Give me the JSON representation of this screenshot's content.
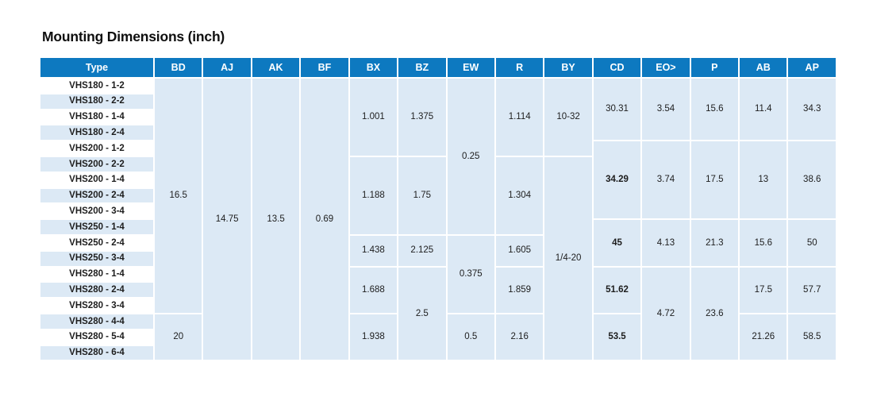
{
  "page": {
    "title": "Mounting Dimensions (inch)"
  },
  "colors": {
    "header_bg": "#0d79c0",
    "header_text": "#ffffff",
    "cell_bg": "#dce9f5",
    "row_base": "#ffffff",
    "body_text": "#1d1d1d"
  },
  "table": {
    "columns": [
      "Type",
      "BD",
      "AJ",
      "AK",
      "BF",
      "BX",
      "BZ",
      "EW",
      "R",
      "BY",
      "CD",
      "EO>",
      "P",
      "AB",
      "AP"
    ],
    "data_column_keys": [
      "BD",
      "AJ",
      "AK",
      "BF",
      "BX",
      "BZ",
      "EW",
      "R",
      "BY",
      "CD",
      "EO>",
      "P",
      "AB",
      "AP"
    ],
    "rows": [
      "VHS180 - 1-2",
      "VHS180 - 2-2",
      "VHS180 - 1-4",
      "VHS180 - 2-4",
      "VHS200 - 1-2",
      "VHS200 - 2-2",
      "VHS200 - 1-4",
      "VHS200 - 2-4",
      "VHS200 - 3-4",
      "VHS250 - 1-4",
      "VHS250 - 2-4",
      "VHS250 - 3-4",
      "VHS280 - 1-4",
      "VHS280 - 2-4",
      "VHS280 - 3-4",
      "VHS280 - 4-4",
      "VHS280 - 5-4",
      "VHS280 - 6-4"
    ],
    "merged": {
      "BD": [
        {
          "v": "16.5",
          "from": 1,
          "to": 15
        },
        {
          "v": "20",
          "from": 16,
          "to": 18
        }
      ],
      "AJ": [
        {
          "v": "14.75",
          "from": 1,
          "to": 18
        }
      ],
      "AK": [
        {
          "v": "13.5",
          "from": 1,
          "to": 18
        }
      ],
      "BF": [
        {
          "v": "0.69",
          "from": 1,
          "to": 18
        }
      ],
      "BX": [
        {
          "v": "1.001",
          "from": 1,
          "to": 5
        },
        {
          "v": "1.188",
          "from": 6,
          "to": 10
        },
        {
          "v": "1.438",
          "from": 11,
          "to": 12
        },
        {
          "v": "1.688",
          "from": 13,
          "to": 15
        },
        {
          "v": "1.938",
          "from": 16,
          "to": 18
        }
      ],
      "BZ": [
        {
          "v": "1.375",
          "from": 1,
          "to": 5
        },
        {
          "v": "1.75",
          "from": 6,
          "to": 10
        },
        {
          "v": "2.125",
          "from": 11,
          "to": 12
        },
        {
          "v": "2.5",
          "from": 13,
          "to": 18
        }
      ],
      "EW": [
        {
          "v": "0.25",
          "from": 1,
          "to": 10
        },
        {
          "v": "0.375",
          "from": 11,
          "to": 15
        },
        {
          "v": "0.5",
          "from": 16,
          "to": 18
        }
      ],
      "R": [
        {
          "v": "1.114",
          "from": 1,
          "to": 5
        },
        {
          "v": "1.304",
          "from": 6,
          "to": 10
        },
        {
          "v": "1.605",
          "from": 11,
          "to": 12
        },
        {
          "v": "1.859",
          "from": 13,
          "to": 15
        },
        {
          "v": "2.16",
          "from": 16,
          "to": 18
        }
      ],
      "BY": [
        {
          "v": "10-32",
          "from": 1,
          "to": 5
        },
        {
          "v": "1/4-20",
          "from": 6,
          "to": 18
        }
      ],
      "CD": [
        {
          "v": "30.31",
          "from": 1,
          "to": 4
        },
        {
          "v": "34.29",
          "from": 5,
          "to": 9,
          "bold": true
        },
        {
          "v": "45",
          "from": 10,
          "to": 12,
          "bold": true
        },
        {
          "v": "51.62",
          "from": 13,
          "to": 15,
          "bold": true
        },
        {
          "v": "53.5",
          "from": 16,
          "to": 18,
          "bold": true
        }
      ],
      "EO>": [
        {
          "v": "3.54",
          "from": 1,
          "to": 4
        },
        {
          "v": "3.74",
          "from": 5,
          "to": 9
        },
        {
          "v": "4.13",
          "from": 10,
          "to": 12
        },
        {
          "v": "4.72",
          "from": 13,
          "to": 18
        }
      ],
      "P": [
        {
          "v": "15.6",
          "from": 1,
          "to": 4
        },
        {
          "v": "17.5",
          "from": 5,
          "to": 9
        },
        {
          "v": "21.3",
          "from": 10,
          "to": 12
        },
        {
          "v": "23.6",
          "from": 13,
          "to": 18
        }
      ],
      "AB": [
        {
          "v": "11.4",
          "from": 1,
          "to": 4
        },
        {
          "v": "13",
          "from": 5,
          "to": 9
        },
        {
          "v": "15.6",
          "from": 10,
          "to": 12
        },
        {
          "v": "17.5",
          "from": 13,
          "to": 15
        },
        {
          "v": "21.26",
          "from": 16,
          "to": 18
        }
      ],
      "AP": [
        {
          "v": "34.3",
          "from": 1,
          "to": 4
        },
        {
          "v": "38.6",
          "from": 5,
          "to": 9
        },
        {
          "v": "50",
          "from": 10,
          "to": 12
        },
        {
          "v": "57.7",
          "from": 13,
          "to": 15
        },
        {
          "v": "58.5",
          "from": 16,
          "to": 18
        }
      ]
    }
  }
}
